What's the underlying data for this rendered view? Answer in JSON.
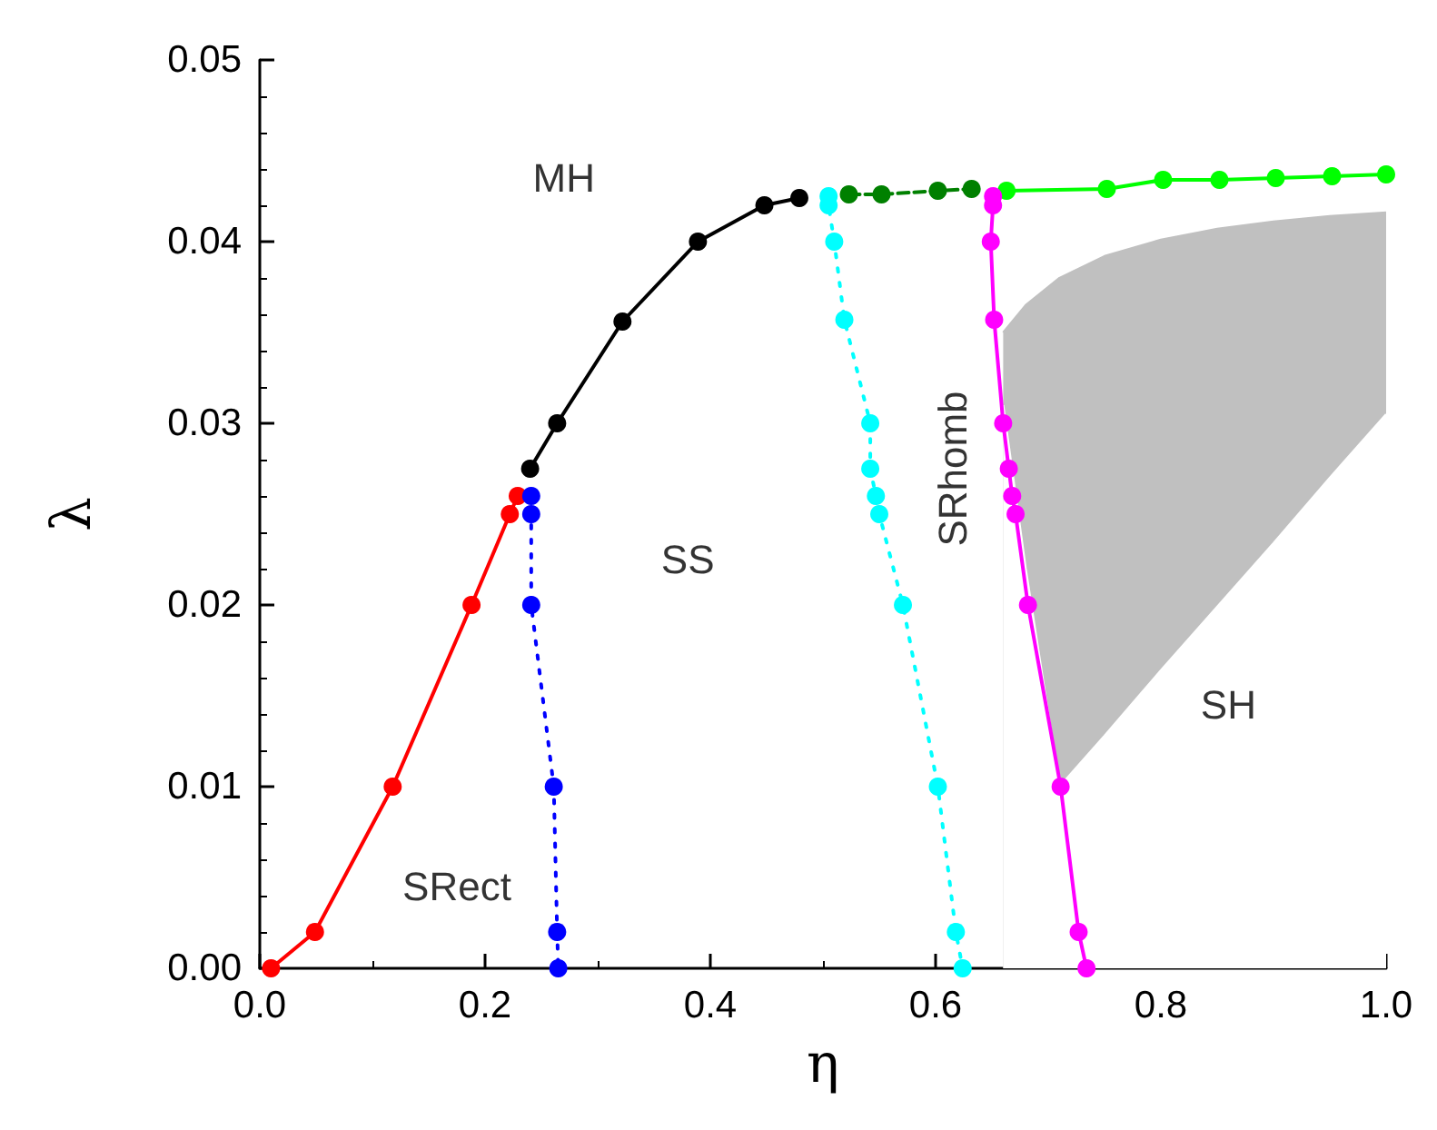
{
  "chart_data": {
    "type": "line",
    "xlabel": "η",
    "ylabel": "λ",
    "xlim": [
      0,
      1
    ],
    "ylim": [
      0,
      0.05
    ],
    "xticks": [
      {
        "value": 0,
        "label": "0.0"
      },
      0.2,
      0.4,
      0.6,
      0.8,
      {
        "value": 1,
        "label": "1.0"
      }
    ],
    "yticks": [
      {
        "value": 0,
        "label": "0.00"
      },
      0.01,
      0.02,
      0.03,
      0.04,
      0.05
    ],
    "grid": false,
    "marker": "circle",
    "annotations": [
      "MH",
      "SS",
      "SRhomb",
      "SRect",
      "SH"
    ],
    "series": [
      {
        "type": "area",
        "color": "#c0c0c0",
        "marker": "none",
        "x": [
          0.66,
          0.68,
          0.71,
          0.75,
          0.8,
          0.85,
          0.9,
          0.95,
          1.0
        ],
        "values": [
          0.035,
          0.0365,
          0.038,
          0.0392,
          0.0401,
          0.0407,
          0.0411,
          0.0414,
          0.0416
        ]
      },
      {
        "type": "area",
        "color": "#ffffff",
        "marker": "none",
        "x": [
          0.66,
          0.68,
          0.71,
          0.75,
          0.8,
          0.85,
          0.9,
          0.95,
          1.0
        ],
        "values": [
          0.031,
          0.022,
          0.01,
          0.0128,
          0.0164,
          0.0199,
          0.0234,
          0.027,
          0.0305
        ]
      },
      {
        "color": "#ff0000",
        "line_style": "solid",
        "x": [
          0.01,
          0.049,
          0.118,
          0.188,
          0.222,
          0.229
        ],
        "values": [
          0,
          0.002,
          0.01,
          0.02,
          0.025,
          0.026
        ]
      },
      {
        "color": "#0000ff",
        "line_style": "dotted",
        "x": [
          0.241,
          0.241,
          0.241,
          0.261,
          0.264,
          0.265
        ],
        "values": [
          0.026,
          0.025,
          0.02,
          0.01,
          0.002,
          0
        ]
      },
      {
        "color": "#000000",
        "line_style": "solid",
        "x": [
          0.24,
          0.264,
          0.322,
          0.389,
          0.448,
          0.479
        ],
        "values": [
          0.0275,
          0.03,
          0.0356,
          0.04,
          0.042,
          0.0424
        ]
      },
      {
        "color": "#00ffff",
        "line_style": "dotted",
        "x": [
          0.505,
          0.505,
          0.51,
          0.519,
          0.542,
          0.542,
          0.547,
          0.55,
          0.571,
          0.602,
          0.618,
          0.624
        ],
        "values": [
          0.0425,
          0.042,
          0.04,
          0.0357,
          0.03,
          0.0275,
          0.026,
          0.025,
          0.02,
          0.01,
          0.002,
          0
        ]
      },
      {
        "color": "#008000",
        "line_style": "dashed",
        "x": [
          0.523,
          0.552,
          0.602,
          0.632
        ],
        "values": [
          0.0426,
          0.0426,
          0.0428,
          0.0429
        ]
      },
      {
        "color": "#00ff00",
        "line_style": "solid",
        "x": [
          0.663,
          0.752,
          0.802,
          0.852,
          0.902,
          0.952,
          1.0
        ],
        "values": [
          0.0428,
          0.0429,
          0.0434,
          0.0434,
          0.0435,
          0.0436,
          0.0437
        ]
      },
      {
        "color": "#ff00ff",
        "line_style": "solid",
        "x": [
          0.651,
          0.651,
          0.649,
          0.652,
          0.66,
          0.665,
          0.668,
          0.671,
          0.682,
          0.711,
          0.727,
          0.734
        ],
        "values": [
          0.0425,
          0.042,
          0.04,
          0.0357,
          0.03,
          0.0275,
          0.026,
          0.025,
          0.02,
          0.01,
          0.002,
          0
        ]
      }
    ]
  }
}
